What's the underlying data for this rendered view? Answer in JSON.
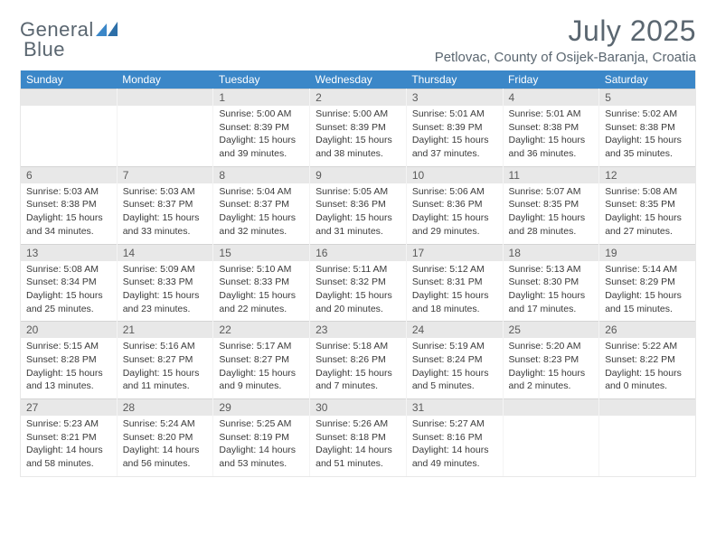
{
  "logo": {
    "text_a": "General",
    "text_b": "Blue",
    "icon_color": "#3b87c8",
    "text_color": "#5a6670"
  },
  "header": {
    "month_title": "July 2025",
    "location": "Petlovac, County of Osijek-Baranja, Croatia"
  },
  "colors": {
    "header_bg": "#3b87c8",
    "header_text": "#ffffff",
    "date_bg": "#e8e8e8",
    "cell_text": "#3a3a3a"
  },
  "dayLabels": [
    "Sunday",
    "Monday",
    "Tuesday",
    "Wednesday",
    "Thursday",
    "Friday",
    "Saturday"
  ],
  "weeks": [
    {
      "dates": [
        "",
        "",
        "1",
        "2",
        "3",
        "4",
        "5"
      ],
      "cells": [
        null,
        null,
        {
          "sunrise": "5:00 AM",
          "sunset": "8:39 PM",
          "daylight": "15 hours and 39 minutes."
        },
        {
          "sunrise": "5:00 AM",
          "sunset": "8:39 PM",
          "daylight": "15 hours and 38 minutes."
        },
        {
          "sunrise": "5:01 AM",
          "sunset": "8:39 PM",
          "daylight": "15 hours and 37 minutes."
        },
        {
          "sunrise": "5:01 AM",
          "sunset": "8:38 PM",
          "daylight": "15 hours and 36 minutes."
        },
        {
          "sunrise": "5:02 AM",
          "sunset": "8:38 PM",
          "daylight": "15 hours and 35 minutes."
        }
      ]
    },
    {
      "dates": [
        "6",
        "7",
        "8",
        "9",
        "10",
        "11",
        "12"
      ],
      "cells": [
        {
          "sunrise": "5:03 AM",
          "sunset": "8:38 PM",
          "daylight": "15 hours and 34 minutes."
        },
        {
          "sunrise": "5:03 AM",
          "sunset": "8:37 PM",
          "daylight": "15 hours and 33 minutes."
        },
        {
          "sunrise": "5:04 AM",
          "sunset": "8:37 PM",
          "daylight": "15 hours and 32 minutes."
        },
        {
          "sunrise": "5:05 AM",
          "sunset": "8:36 PM",
          "daylight": "15 hours and 31 minutes."
        },
        {
          "sunrise": "5:06 AM",
          "sunset": "8:36 PM",
          "daylight": "15 hours and 29 minutes."
        },
        {
          "sunrise": "5:07 AM",
          "sunset": "8:35 PM",
          "daylight": "15 hours and 28 minutes."
        },
        {
          "sunrise": "5:08 AM",
          "sunset": "8:35 PM",
          "daylight": "15 hours and 27 minutes."
        }
      ]
    },
    {
      "dates": [
        "13",
        "14",
        "15",
        "16",
        "17",
        "18",
        "19"
      ],
      "cells": [
        {
          "sunrise": "5:08 AM",
          "sunset": "8:34 PM",
          "daylight": "15 hours and 25 minutes."
        },
        {
          "sunrise": "5:09 AM",
          "sunset": "8:33 PM",
          "daylight": "15 hours and 23 minutes."
        },
        {
          "sunrise": "5:10 AM",
          "sunset": "8:33 PM",
          "daylight": "15 hours and 22 minutes."
        },
        {
          "sunrise": "5:11 AM",
          "sunset": "8:32 PM",
          "daylight": "15 hours and 20 minutes."
        },
        {
          "sunrise": "5:12 AM",
          "sunset": "8:31 PM",
          "daylight": "15 hours and 18 minutes."
        },
        {
          "sunrise": "5:13 AM",
          "sunset": "8:30 PM",
          "daylight": "15 hours and 17 minutes."
        },
        {
          "sunrise": "5:14 AM",
          "sunset": "8:29 PM",
          "daylight": "15 hours and 15 minutes."
        }
      ]
    },
    {
      "dates": [
        "20",
        "21",
        "22",
        "23",
        "24",
        "25",
        "26"
      ],
      "cells": [
        {
          "sunrise": "5:15 AM",
          "sunset": "8:28 PM",
          "daylight": "15 hours and 13 minutes."
        },
        {
          "sunrise": "5:16 AM",
          "sunset": "8:27 PM",
          "daylight": "15 hours and 11 minutes."
        },
        {
          "sunrise": "5:17 AM",
          "sunset": "8:27 PM",
          "daylight": "15 hours and 9 minutes."
        },
        {
          "sunrise": "5:18 AM",
          "sunset": "8:26 PM",
          "daylight": "15 hours and 7 minutes."
        },
        {
          "sunrise": "5:19 AM",
          "sunset": "8:24 PM",
          "daylight": "15 hours and 5 minutes."
        },
        {
          "sunrise": "5:20 AM",
          "sunset": "8:23 PM",
          "daylight": "15 hours and 2 minutes."
        },
        {
          "sunrise": "5:22 AM",
          "sunset": "8:22 PM",
          "daylight": "15 hours and 0 minutes."
        }
      ]
    },
    {
      "dates": [
        "27",
        "28",
        "29",
        "30",
        "31",
        "",
        ""
      ],
      "cells": [
        {
          "sunrise": "5:23 AM",
          "sunset": "8:21 PM",
          "daylight": "14 hours and 58 minutes."
        },
        {
          "sunrise": "5:24 AM",
          "sunset": "8:20 PM",
          "daylight": "14 hours and 56 minutes."
        },
        {
          "sunrise": "5:25 AM",
          "sunset": "8:19 PM",
          "daylight": "14 hours and 53 minutes."
        },
        {
          "sunrise": "5:26 AM",
          "sunset": "8:18 PM",
          "daylight": "14 hours and 51 minutes."
        },
        {
          "sunrise": "5:27 AM",
          "sunset": "8:16 PM",
          "daylight": "14 hours and 49 minutes."
        },
        null,
        null
      ]
    }
  ]
}
